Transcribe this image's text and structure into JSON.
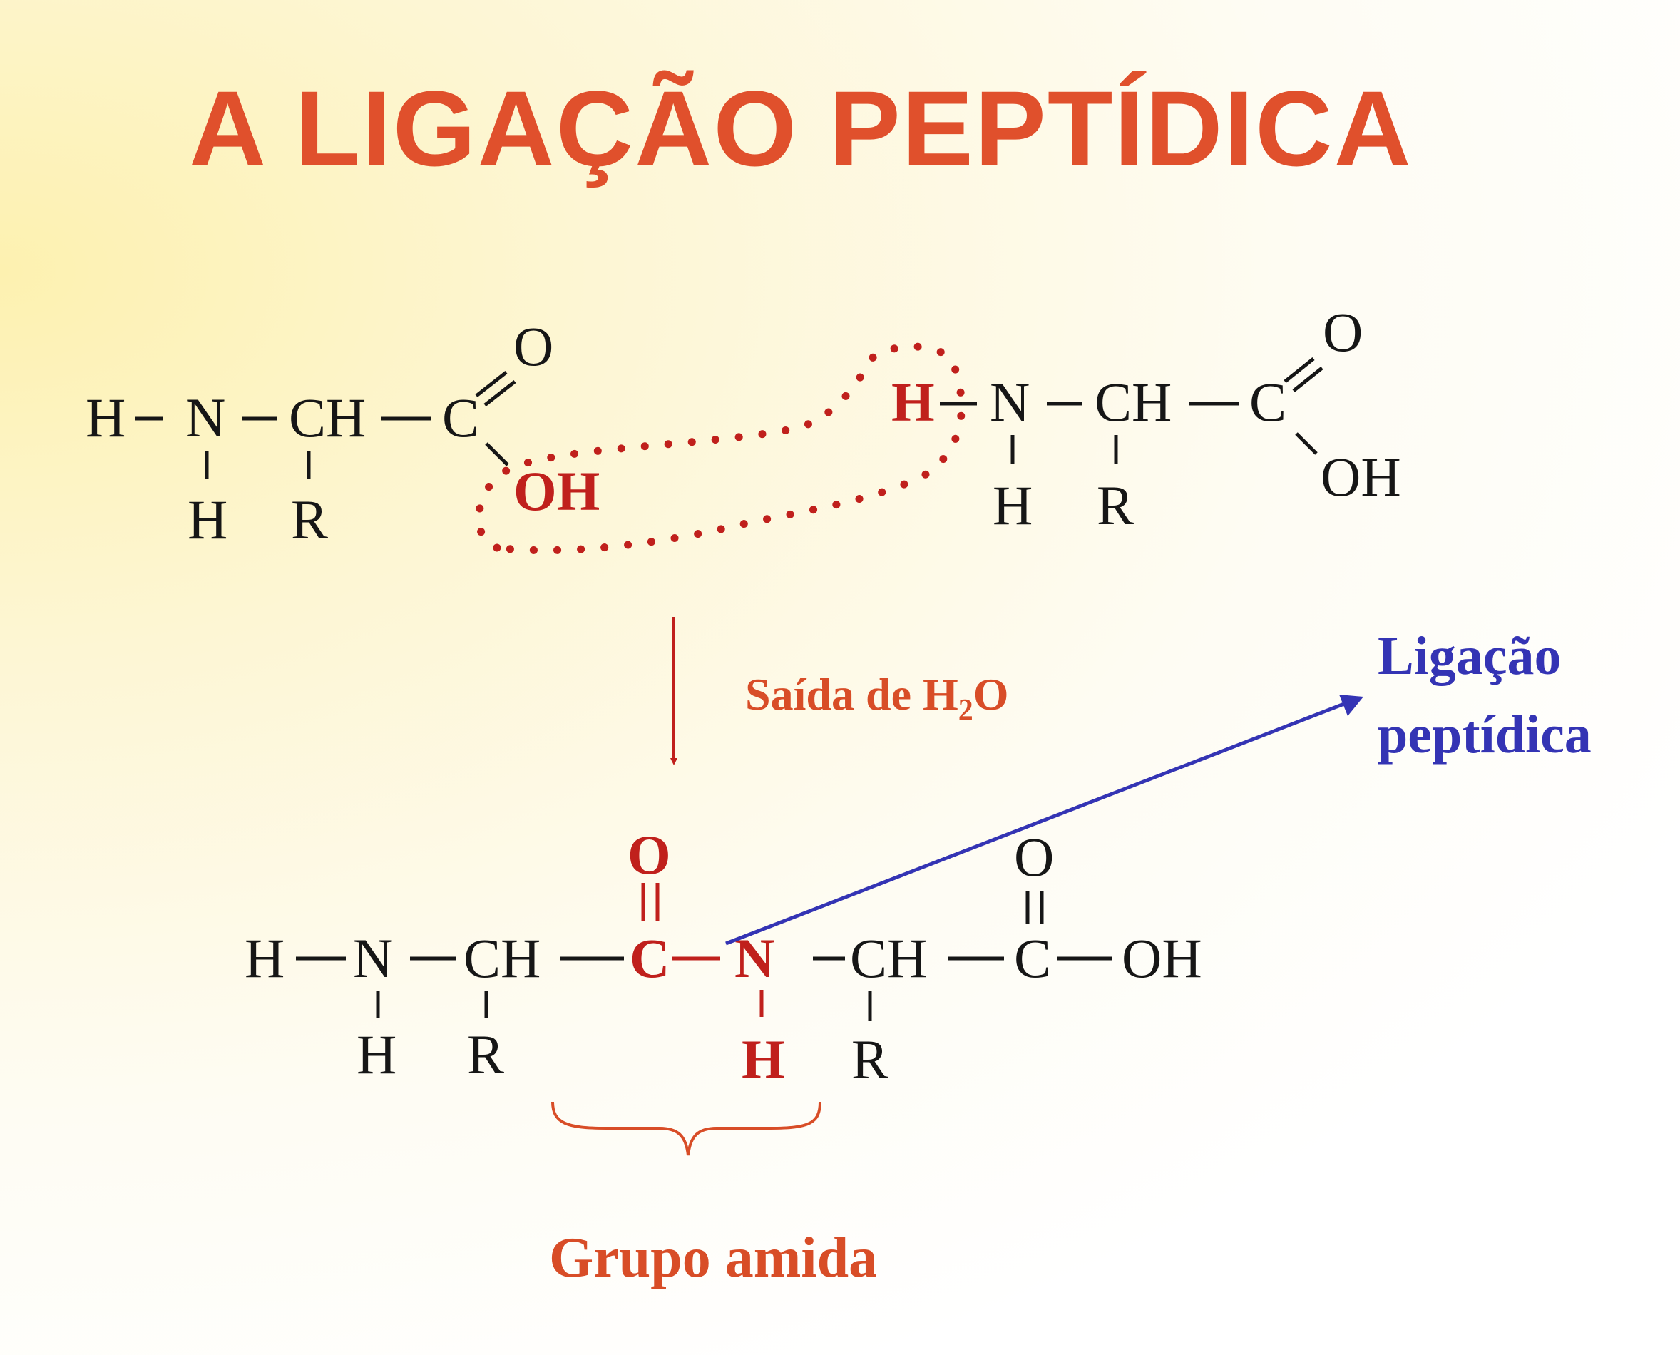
{
  "title": "A LIGAÇÃO PEPTÍDICA",
  "colors": {
    "title": "#e0502c",
    "highlight_red": "#c0201c",
    "label_orange": "#d84d27",
    "arrow_blue": "#3434b4",
    "structure_black": "#161616"
  },
  "reactant_1": {
    "h_left": "H",
    "n": "N",
    "ch": "CH",
    "c": "C",
    "o_double": "O",
    "oh": "OH",
    "h_below_n": "H",
    "r": "R"
  },
  "reactant_2": {
    "h_left": "H",
    "n": "N",
    "ch": "CH",
    "c": "C",
    "o_double": "O",
    "oh": "OH",
    "h_below_n": "H",
    "r": "R"
  },
  "reaction": {
    "label_prefix": "Saída de H",
    "label_subscript": "2",
    "label_suffix": "O"
  },
  "product": {
    "h_left": "H",
    "n1": "N",
    "ch1": "CH",
    "c_amide": "C",
    "o_amide": "O",
    "n_amide": "N",
    "h_amide": "H",
    "ch2": "CH",
    "c2": "C",
    "o2": "O",
    "oh": "OH",
    "h_below_n1": "H",
    "r1": "R",
    "r2": "R"
  },
  "annotations": {
    "peptide_bond_line1": "Ligação",
    "peptide_bond_line2": "peptídica",
    "amide_group": "Grupo amida"
  }
}
